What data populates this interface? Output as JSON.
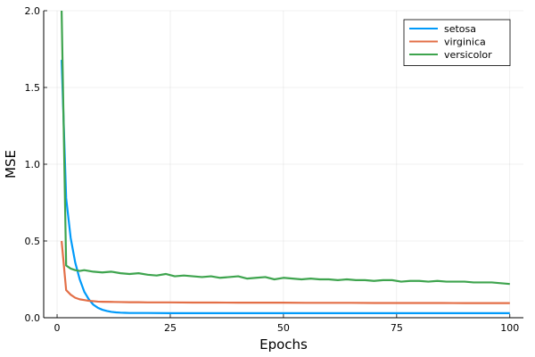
{
  "chart_data": {
    "type": "line",
    "title": "",
    "xlabel": "Epochs",
    "ylabel": "MSE",
    "xlim": [
      1,
      100
    ],
    "ylim": [
      0,
      2.0
    ],
    "xticks": [
      0,
      25,
      50,
      75,
      100
    ],
    "xtick_labels": [
      "0",
      "25",
      "50",
      "75",
      "100"
    ],
    "yticks": [
      0,
      0.5,
      1.0,
      1.5,
      2.0
    ],
    "ytick_labels": [
      "0.0",
      "0.5",
      "1.0",
      "1.5",
      "2.0"
    ],
    "grid": true,
    "legend_position": "top-right",
    "series": [
      {
        "name": "setosa",
        "color": "#009AFA",
        "x": [
          1,
          2,
          3,
          4,
          5,
          6,
          7,
          8,
          9,
          10,
          11,
          12,
          13,
          14,
          15,
          16,
          18,
          20,
          25,
          30,
          40,
          50,
          60,
          70,
          80,
          90,
          100
        ],
        "y": [
          1.68,
          0.78,
          0.52,
          0.36,
          0.25,
          0.17,
          0.12,
          0.085,
          0.065,
          0.052,
          0.044,
          0.038,
          0.035,
          0.033,
          0.032,
          0.031,
          0.031,
          0.031,
          0.03,
          0.03,
          0.03,
          0.03,
          0.03,
          0.03,
          0.03,
          0.03,
          0.03
        ]
      },
      {
        "name": "virginica",
        "color": "#E36F47",
        "x": [
          1,
          2,
          3,
          4,
          5,
          6,
          7,
          8,
          9,
          10,
          12,
          14,
          16,
          18,
          20,
          25,
          30,
          35,
          40,
          45,
          50,
          55,
          60,
          65,
          70,
          75,
          80,
          85,
          90,
          95,
          100
        ],
        "y": [
          0.5,
          0.18,
          0.15,
          0.13,
          0.12,
          0.115,
          0.11,
          0.108,
          0.105,
          0.104,
          0.103,
          0.102,
          0.101,
          0.101,
          0.1,
          0.1,
          0.099,
          0.099,
          0.098,
          0.098,
          0.098,
          0.097,
          0.097,
          0.097,
          0.096,
          0.096,
          0.096,
          0.096,
          0.095,
          0.095,
          0.095
        ]
      },
      {
        "name": "versicolor",
        "color": "#3EA44E",
        "x": [
          1,
          2,
          3,
          4,
          5,
          6,
          8,
          10,
          12,
          14,
          16,
          18,
          20,
          22,
          24,
          26,
          28,
          30,
          32,
          34,
          36,
          38,
          40,
          42,
          44,
          46,
          48,
          50,
          52,
          54,
          56,
          58,
          60,
          62,
          64,
          66,
          68,
          70,
          72,
          74,
          76,
          78,
          80,
          82,
          84,
          86,
          88,
          90,
          92,
          94,
          96,
          98,
          100
        ],
        "y": [
          2.0,
          0.34,
          0.32,
          0.31,
          0.305,
          0.31,
          0.3,
          0.295,
          0.3,
          0.29,
          0.285,
          0.29,
          0.28,
          0.275,
          0.285,
          0.27,
          0.275,
          0.27,
          0.265,
          0.27,
          0.26,
          0.265,
          0.27,
          0.255,
          0.26,
          0.265,
          0.25,
          0.26,
          0.255,
          0.25,
          0.255,
          0.25,
          0.25,
          0.245,
          0.25,
          0.245,
          0.245,
          0.24,
          0.245,
          0.245,
          0.235,
          0.24,
          0.24,
          0.235,
          0.24,
          0.235,
          0.235,
          0.235,
          0.23,
          0.23,
          0.23,
          0.225,
          0.22
        ]
      }
    ]
  }
}
